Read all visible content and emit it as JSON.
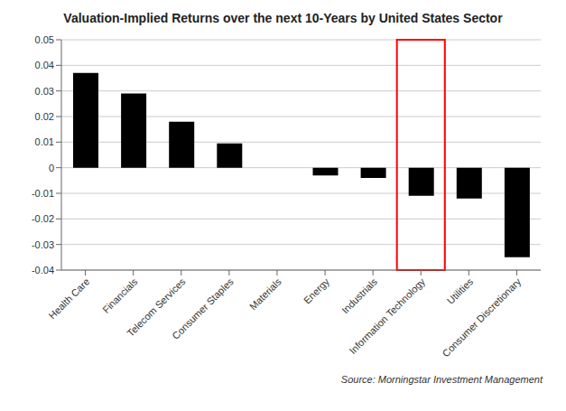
{
  "chart_data": {
    "type": "bar",
    "title": "Valuation-Implied Returns over the next 10-Years by United States Sector",
    "categories": [
      "Health Care",
      "Financials",
      "Telecom Services",
      "Consumer Staples",
      "Materials",
      "Energy",
      "Industrials",
      "Information Technology",
      "Utilities",
      "Consumer Discretionary"
    ],
    "values": [
      0.037,
      0.029,
      0.018,
      0.0095,
      0.0,
      -0.003,
      -0.004,
      -0.011,
      -0.012,
      -0.035
    ],
    "color": "#000000",
    "ylim": [
      -0.04,
      0.05
    ],
    "yticks": [
      -0.04,
      -0.03,
      -0.02,
      -0.01,
      0,
      0.01,
      0.02,
      0.03,
      0.04,
      0.05
    ],
    "grid": true,
    "highlight": {
      "category": "Information Technology",
      "color": "red"
    },
    "annotations": [
      "Source: Morningstar Investment Management"
    ]
  }
}
